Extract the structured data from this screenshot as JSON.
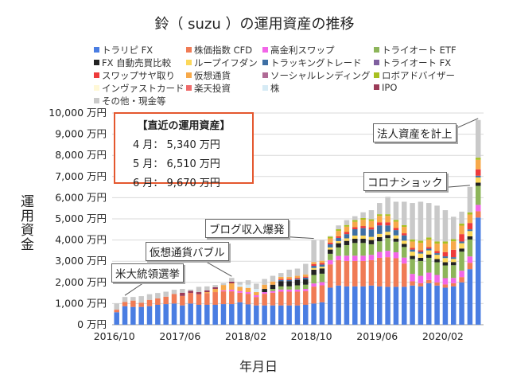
{
  "chart_data": {
    "type": "bar",
    "stacked": true,
    "title": "鈴（ suzu ）の運用資産の推移",
    "xlabel": "年月日",
    "ylabel": "運用資金",
    "ylim": [
      0,
      10000
    ],
    "yticks": [
      "0 万円",
      "1,000 万円",
      "2,000 万円",
      "3,000 万円",
      "4,000 万円",
      "5,000 万円",
      "6,000 万円",
      "7,000 万円",
      "8,000 万円",
      "9,000 万円",
      "10,000 万円"
    ],
    "xticks": [
      {
        "label": "2016/10",
        "index": 0
      },
      {
        "label": "2017/06",
        "index": 8
      },
      {
        "label": "2018/02",
        "index": 16
      },
      {
        "label": "2018/10",
        "index": 24
      },
      {
        "label": "2019/06",
        "index": 32
      },
      {
        "label": "2020/02",
        "index": 40
      }
    ],
    "grid": true,
    "legend_position": "top",
    "totals": [
      1000,
      1310,
      1310,
      1350,
      1440,
      1500,
      1560,
      1650,
      1690,
      1660,
      1790,
      1810,
      1875,
      1960,
      2210,
      2025,
      2100,
      1940,
      2160,
      2310,
      2440,
      2600,
      2650,
      2875,
      4000,
      4000,
      4190,
      4690,
      4940,
      5125,
      5310,
      5410,
      5750,
      6040,
      5810,
      5810,
      5750,
      5810,
      5750,
      5625,
      5410,
      5100,
      5340,
      6510,
      9670
    ],
    "series": [
      {
        "name": "トラリピ FX",
        "color": "#4a7de2",
        "values": [
          590,
          875,
          840,
          840,
          875,
          940,
          975,
          1000,
          910,
          1000,
          940,
          940,
          940,
          975,
          975,
          1060,
          960,
          910,
          910,
          910,
          910,
          910,
          910,
          940,
          1000,
          1060,
          1750,
          1850,
          1810,
          1810,
          1810,
          1850,
          1810,
          1790,
          1790,
          1790,
          1850,
          1810,
          1960,
          1850,
          1750,
          1810,
          2000,
          2625,
          5060
        ]
      },
      {
        "name": "株価指数 CFD",
        "color": "#f07b55",
        "values": [
          120,
          200,
          300,
          200,
          300,
          300,
          350,
          450,
          450,
          500,
          500,
          550,
          600,
          600,
          600,
          450,
          500,
          400,
          550,
          600,
          650,
          650,
          650,
          650,
          800,
          800,
          1100,
          1200,
          1200,
          1200,
          1200,
          1200,
          1350,
          1400,
          1350,
          1100,
          200,
          150,
          150,
          150,
          150,
          150,
          250,
          300,
          300
        ]
      },
      {
        "name": "高金利スワップ",
        "color": "#f266e8",
        "values": [
          0,
          0,
          0,
          0,
          0,
          0,
          0,
          0,
          0,
          0,
          0,
          0,
          0,
          50,
          80,
          80,
          80,
          80,
          80,
          80,
          100,
          100,
          100,
          100,
          150,
          150,
          200,
          200,
          250,
          250,
          250,
          250,
          280,
          300,
          280,
          280,
          350,
          350,
          350,
          350,
          300,
          250,
          300,
          300,
          300
        ]
      },
      {
        "name": "トライオート ETF",
        "color": "#8db55a",
        "values": [
          0,
          0,
          0,
          0,
          0,
          0,
          0,
          0,
          0,
          0,
          0,
          0,
          0,
          0,
          0,
          0,
          0,
          0,
          0,
          100,
          150,
          150,
          200,
          200,
          400,
          400,
          300,
          400,
          500,
          600,
          600,
          500,
          500,
          600,
          500,
          500,
          700,
          700,
          700,
          600,
          600,
          600,
          900,
          800,
          900
        ]
      },
      {
        "name": "FX 自動売買比較",
        "color": "#222222",
        "values": [
          0,
          0,
          0,
          0,
          0,
          0,
          0,
          0,
          0,
          0,
          0,
          0,
          0,
          0,
          0,
          0,
          0,
          0,
          150,
          200,
          250,
          250,
          250,
          250,
          250,
          250,
          200,
          200,
          200,
          200,
          200,
          200,
          200,
          150,
          150,
          150,
          150,
          150,
          150,
          150,
          150,
          150,
          150,
          150,
          150
        ]
      },
      {
        "name": "ループイフダン",
        "color": "#fcd85a",
        "values": [
          0,
          0,
          0,
          0,
          0,
          0,
          0,
          0,
          0,
          0,
          0,
          0,
          0,
          0,
          0,
          0,
          0,
          0,
          0,
          0,
          0,
          0,
          0,
          0,
          80,
          80,
          100,
          100,
          120,
          150,
          150,
          150,
          150,
          150,
          150,
          150,
          200,
          200,
          200,
          200,
          200,
          150,
          250,
          250,
          250
        ]
      },
      {
        "name": "トラッキングトレード",
        "color": "#3e6fa4",
        "values": [
          0,
          0,
          0,
          0,
          0,
          0,
          0,
          0,
          0,
          0,
          0,
          0,
          0,
          0,
          0,
          0,
          0,
          0,
          0,
          0,
          50,
          50,
          50,
          80,
          100,
          100,
          150,
          150,
          200,
          300,
          350,
          350,
          400,
          300,
          250,
          250,
          100,
          80,
          80,
          80,
          80,
          80,
          80,
          80,
          80
        ]
      },
      {
        "name": "トライオート FX",
        "color": "#7f5f9f",
        "values": []
      },
      {
        "name": "スワップサヤ取り",
        "color": "#ee3b3b",
        "values": [
          0,
          0,
          0,
          0,
          0,
          0,
          0,
          0,
          0,
          0,
          0,
          0,
          0,
          0,
          0,
          0,
          0,
          0,
          0,
          0,
          50,
          50,
          50,
          50,
          80,
          80,
          80,
          80,
          100,
          100,
          100,
          100,
          150,
          150,
          100,
          100,
          80,
          80,
          80,
          100,
          200,
          350,
          350,
          300,
          300
        ]
      },
      {
        "name": "仮想通貨",
        "color": "#f7a94a",
        "values": [
          0,
          0,
          0,
          0,
          0,
          0,
          0,
          0,
          0,
          0,
          0,
          50,
          150,
          250,
          300,
          200,
          200,
          150,
          200,
          150,
          100,
          100,
          100,
          100,
          100,
          100,
          200,
          250,
          250,
          250,
          300,
          300,
          300,
          300,
          300,
          300,
          300,
          350,
          350,
          350,
          400,
          400,
          400,
          400,
          450
        ]
      },
      {
        "name": "ソーシャルレンディング",
        "color": "#b06a96",
        "values": []
      },
      {
        "name": "ロボアドバイザー",
        "color": "#a8c020",
        "values": [
          0,
          0,
          0,
          0,
          0,
          0,
          0,
          0,
          0,
          0,
          0,
          0,
          0,
          0,
          0,
          0,
          0,
          0,
          0,
          0,
          0,
          0,
          0,
          0,
          0,
          0,
          80,
          80,
          80,
          80,
          80,
          80,
          80,
          80,
          80,
          80,
          100,
          100,
          100,
          100,
          100,
          100,
          100,
          100,
          100
        ]
      },
      {
        "name": "インヴァストカード",
        "color": "#fff8d6",
        "values": []
      },
      {
        "name": "楽天投資",
        "color": "#ef6b6b",
        "values": []
      },
      {
        "name": "株",
        "color": "#d6ebf5",
        "values": [
          0,
          0,
          0,
          0,
          0,
          0,
          0,
          0,
          0,
          0,
          0,
          0,
          0,
          0,
          0,
          100,
          150,
          150,
          0,
          0,
          0,
          0,
          0,
          0,
          0,
          0,
          0,
          0,
          0,
          0,
          0,
          0,
          0,
          0,
          0,
          0,
          0,
          0,
          0,
          0,
          0,
          0,
          0,
          0,
          0
        ]
      },
      {
        "name": "IPO",
        "color": "#9b3b58",
        "values": [
          0,
          0,
          0,
          0,
          0,
          0,
          0,
          0,
          150,
          100,
          100,
          80,
          80,
          0,
          80,
          0,
          0,
          0,
          0,
          0,
          0,
          0,
          0,
          0,
          0,
          0,
          0,
          0,
          0,
          0,
          0,
          0,
          0,
          0,
          0,
          0,
          0,
          0,
          0,
          0,
          0,
          0,
          0,
          0,
          0
        ]
      },
      {
        "name": "その他・現金等",
        "color": "#c9c9c9",
        "values": null,
        "remainder": true
      }
    ],
    "annotations": {
      "recent_box": {
        "heading": "【直近の運用資産】",
        "rows": [
          "4 月： 5,340 万円",
          "5 月： 6,510 万円",
          "6 月： 9,670 万円"
        ]
      },
      "callouts": [
        {
          "text": "米大統領選挙",
          "index": 1
        },
        {
          "text": "仮想通貨バブル",
          "index": 14
        },
        {
          "text": "ブログ収入爆発",
          "index": 24
        },
        {
          "text": "コロナショック",
          "index": 43
        },
        {
          "text": "法人資産を計上",
          "index": 44
        }
      ]
    }
  }
}
